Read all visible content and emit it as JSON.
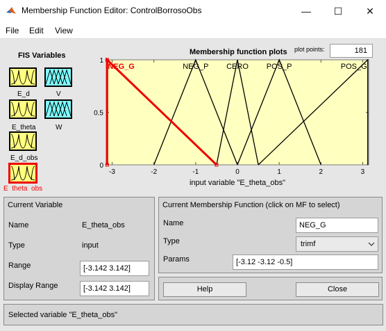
{
  "window": {
    "title": "Membership Function Editor: ControlBorrosoObs",
    "minimize_glyph": "—",
    "maximize_glyph": "☐",
    "close_glyph": "✕"
  },
  "menu": [
    "File",
    "Edit",
    "View"
  ],
  "fis_variables": {
    "title": "FIS Variables",
    "items": [
      {
        "label": "E_d",
        "color": "#ffff80"
      },
      {
        "label": "V",
        "color": "#80ffff"
      },
      {
        "label": "E_theta",
        "color": "#ffff80"
      },
      {
        "label": "W",
        "color": "#80ffff"
      },
      {
        "label": "E_d_obs",
        "color": "#ffff80"
      },
      {
        "label": "E_theta_obs",
        "color": "#ffff80",
        "selected": true
      }
    ]
  },
  "plot": {
    "title": "Membership function plots",
    "plot_points_label": "plot points:",
    "plot_points_value": "181",
    "background_color": "#ffffc0",
    "selected_color": "#ee0000"
  },
  "chart_data": {
    "type": "line",
    "xlabel": "input variable \"E_theta_obs\"",
    "xlim": [
      -3.142,
      3.142
    ],
    "ylim": [
      0,
      1
    ],
    "xticks": [
      "-3",
      "-2",
      "-1",
      "0",
      "1",
      "2",
      "3"
    ],
    "yticks": [
      "0",
      "0.5",
      "1"
    ],
    "series": [
      {
        "name": "NEG_G",
        "params": [
          -3.12,
          -3.12,
          -0.5
        ],
        "x": [
          -3.12,
          -3.12,
          -0.5
        ],
        "y": [
          0,
          1,
          0
        ],
        "selected": true
      },
      {
        "name": "NEG_P",
        "x": [
          -2,
          -1,
          0
        ],
        "y": [
          0,
          1,
          0
        ]
      },
      {
        "name": "CERO",
        "x": [
          -0.5,
          0,
          0.5
        ],
        "y": [
          0,
          1,
          0
        ]
      },
      {
        "name": "POS_P",
        "x": [
          0,
          1,
          2
        ],
        "y": [
          0,
          1,
          0
        ]
      },
      {
        "name": "POS_G",
        "x": [
          0.5,
          3.12,
          3.12
        ],
        "y": [
          0,
          1,
          0
        ]
      }
    ]
  },
  "current_variable": {
    "title": "Current Variable",
    "name_label": "Name",
    "name_value": "E_theta_obs",
    "type_label": "Type",
    "type_value": "input",
    "range_label": "Range",
    "range_value": "[-3.142 3.142]",
    "display_range_label": "Display Range",
    "display_range_value": "[-3.142 3.142]"
  },
  "current_mf": {
    "title": "Current Membership Function (click on MF to select)",
    "name_label": "Name",
    "name_value": "NEG_G",
    "type_label": "Type",
    "type_value": "trimf",
    "params_label": "Params",
    "params_value": "[-3.12 -3.12 -0.5]"
  },
  "buttons": {
    "help": "Help",
    "close": "Close"
  },
  "status": "Selected variable \"E_theta_obs\""
}
